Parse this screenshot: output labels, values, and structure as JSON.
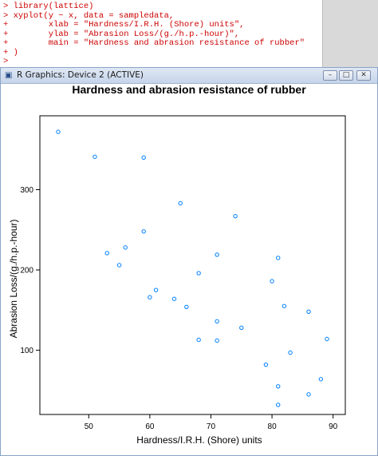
{
  "console": {
    "lines": [
      "> library(lattice)",
      "> xyplot(y ~ x, data = sampledata,",
      "+        xlab = \"Hardness/I.R.H. (Shore) units\",",
      "+        ylab = \"Abrasion Loss/(g./h.p.-hour)\",",
      "+        main = \"Hardness and abrasion resistance of rubber\"",
      "+ )",
      "> "
    ]
  },
  "window": {
    "title": "R Graphics: Device 2 (ACTIVE)",
    "icon": "r-graphics-icon",
    "buttons": {
      "minimize": "–",
      "maximize": "□",
      "close": "✕"
    }
  },
  "colors": {
    "points": "#0080ff",
    "console_text": "#cc0000",
    "axis": "#000000"
  },
  "chart_data": {
    "type": "scatter",
    "title": "Hardness and abrasion resistance of rubber",
    "xlabel": "Hardness/I.R.H. (Shore) units",
    "ylabel": "Abrasion Loss/(g./h.p.-hour)",
    "xlim": [
      42,
      92
    ],
    "ylim": [
      20,
      392
    ],
    "x_ticks": [
      50,
      60,
      70,
      80,
      90
    ],
    "y_ticks": [
      100,
      200,
      300
    ],
    "grid": false,
    "marker": "circle-open",
    "points": [
      {
        "x": 45,
        "y": 372
      },
      {
        "x": 51,
        "y": 341
      },
      {
        "x": 53,
        "y": 221
      },
      {
        "x": 55,
        "y": 206
      },
      {
        "x": 56,
        "y": 228
      },
      {
        "x": 59,
        "y": 340
      },
      {
        "x": 59,
        "y": 248
      },
      {
        "x": 60,
        "y": 166
      },
      {
        "x": 61,
        "y": 175
      },
      {
        "x": 64,
        "y": 164
      },
      {
        "x": 65,
        "y": 283
      },
      {
        "x": 66,
        "y": 154
      },
      {
        "x": 68,
        "y": 196
      },
      {
        "x": 68,
        "y": 113
      },
      {
        "x": 71,
        "y": 219
      },
      {
        "x": 71,
        "y": 136
      },
      {
        "x": 71,
        "y": 112
      },
      {
        "x": 74,
        "y": 267
      },
      {
        "x": 75,
        "y": 128
      },
      {
        "x": 79,
        "y": 82
      },
      {
        "x": 80,
        "y": 186
      },
      {
        "x": 81,
        "y": 215
      },
      {
        "x": 81,
        "y": 55
      },
      {
        "x": 81,
        "y": 32
      },
      {
        "x": 82,
        "y": 155
      },
      {
        "x": 83,
        "y": 97
      },
      {
        "x": 86,
        "y": 148
      },
      {
        "x": 86,
        "y": 45
      },
      {
        "x": 88,
        "y": 64
      },
      {
        "x": 89,
        "y": 114
      }
    ]
  }
}
